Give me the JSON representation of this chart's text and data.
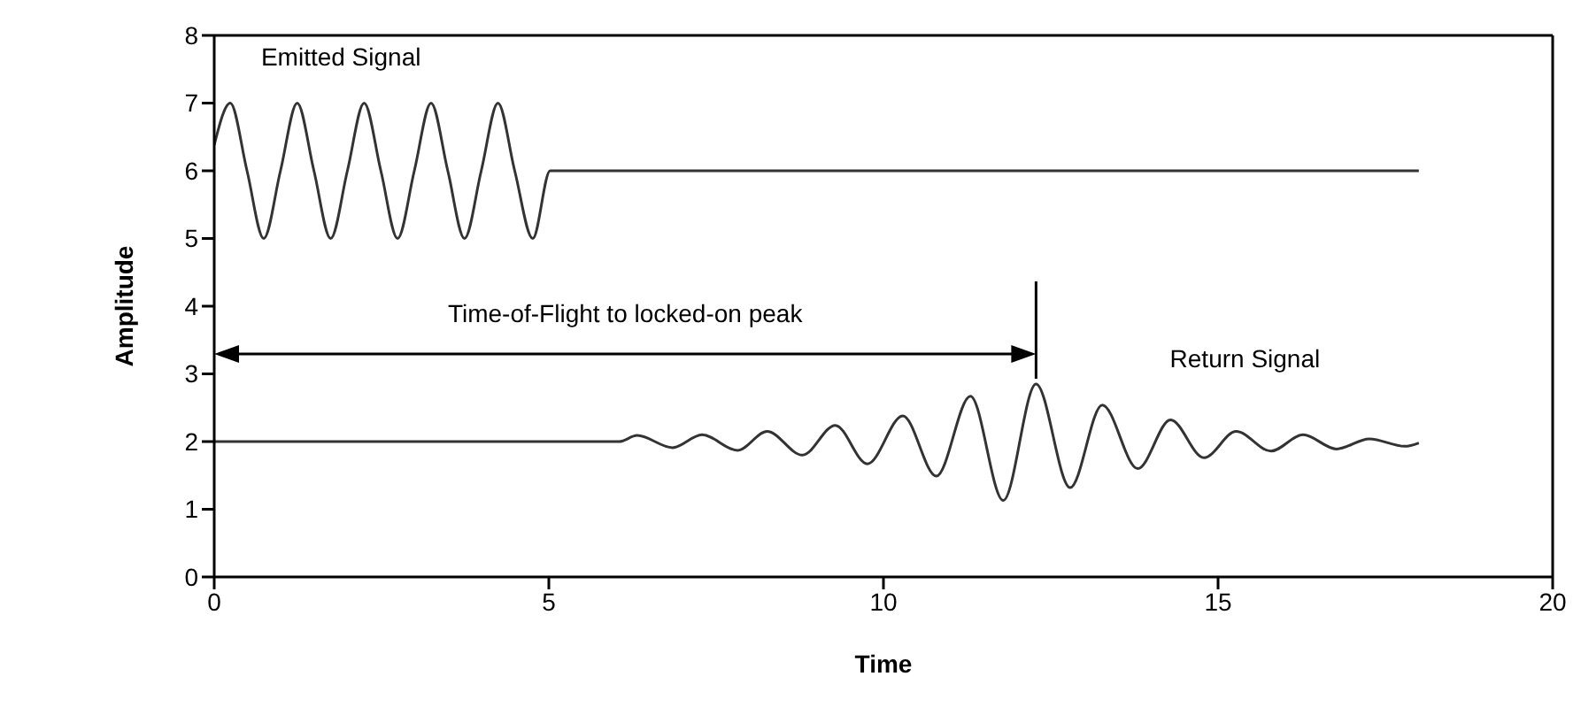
{
  "chart_data": {
    "type": "line",
    "xlabel": "Time",
    "ylabel": "Amplitude",
    "xlim": [
      0,
      20
    ],
    "xticks": [
      0,
      5,
      10,
      15,
      20
    ],
    "ylim": [
      0,
      8
    ],
    "yticks": [
      0,
      1,
      2,
      3,
      4,
      5,
      6,
      7,
      8
    ],
    "marker": "none",
    "line_style": "solid",
    "series": [
      {
        "name": "Emitted Signal",
        "color": "#333333",
        "x": [
          0,
          0.24,
          0.49,
          0.74,
          0.99,
          1.24,
          1.49,
          1.74,
          1.99,
          2.24,
          2.49,
          2.74,
          2.99,
          3.24,
          3.49,
          3.74,
          3.99,
          4.24,
          4.49,
          4.76,
          5.02,
          18
        ],
        "values": [
          6.38,
          7,
          6,
          5,
          6,
          7,
          6,
          5,
          6,
          7,
          6,
          5,
          6,
          7,
          6,
          5,
          6,
          7,
          6,
          5,
          6,
          6
        ]
      },
      {
        "name": "Return Signal",
        "color": "#333333",
        "x": [
          0,
          6.05,
          6.32,
          6.85,
          7.29,
          7.82,
          8.26,
          8.79,
          9.28,
          9.76,
          10.29,
          10.79,
          11.3,
          11.79,
          12.28,
          12.79,
          13.27,
          13.8,
          14.29,
          14.79,
          15.27,
          15.79,
          16.27,
          16.77,
          17.26,
          17.79,
          18
        ],
        "values": [
          2,
          2,
          2.09,
          1.91,
          2.1,
          1.87,
          2.15,
          1.8,
          2.24,
          1.67,
          2.38,
          1.49,
          2.67,
          1.13,
          2.85,
          1.32,
          2.54,
          1.6,
          2.32,
          1.76,
          2.15,
          1.86,
          2.1,
          1.89,
          2.04,
          1.93,
          1.98
        ]
      }
    ],
    "annotations": [
      "Time-of-Flight to locked-on peak"
    ]
  }
}
